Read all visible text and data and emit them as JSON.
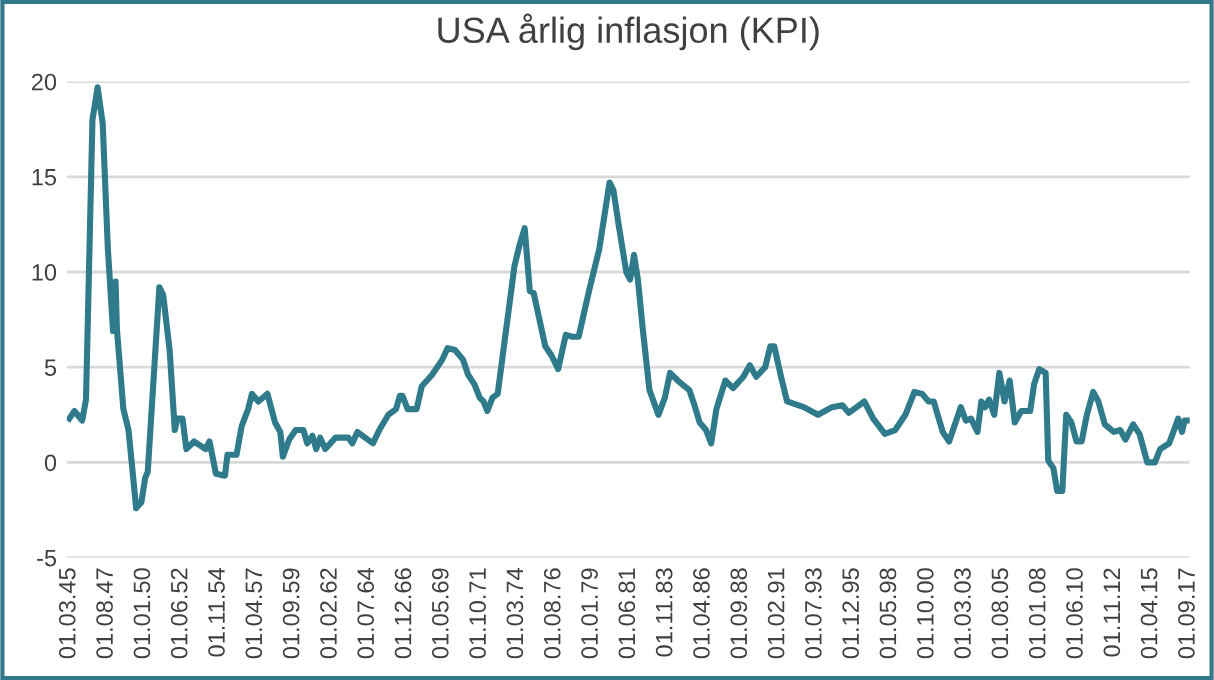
{
  "chart_data": {
    "type": "line",
    "title": "USA årlig inflasjon (KPI)",
    "x": [
      "1945-03",
      "1945-07",
      "1946-01",
      "1946-04",
      "1946-09",
      "1947-01",
      "1947-05",
      "1947-09",
      "1948-01",
      "1948-03",
      "1948-04",
      "1948-09",
      "1949-01",
      "1949-07",
      "1949-11",
      "1950-02",
      "1950-04",
      "1951-01",
      "1951-04",
      "1951-09",
      "1952-01",
      "1952-03",
      "1952-07",
      "1952-10",
      "1953-04",
      "1954-01",
      "1954-04",
      "1954-09",
      "1955-04",
      "1955-06",
      "1956-01",
      "1956-05",
      "1956-10",
      "1957-01",
      "1957-06",
      "1958-01",
      "1958-07",
      "1958-11",
      "1959-01",
      "1959-06",
      "1959-11",
      "1960-05",
      "1960-08",
      "1960-12",
      "1961-03",
      "1961-06",
      "1961-10",
      "1962-06",
      "1963-04",
      "1963-07",
      "1963-11",
      "1964-05",
      "1964-11",
      "1965-04",
      "1965-11",
      "1966-05",
      "1966-08",
      "1966-10",
      "1967-02",
      "1967-09",
      "1968-01",
      "1968-09",
      "1969-05",
      "1969-09",
      "1970-03",
      "1970-09",
      "1971-01",
      "1971-06",
      "1971-10",
      "1972-01",
      "1972-04",
      "1972-08",
      "1972-12",
      "1974-01",
      "1974-05",
      "1974-09",
      "1975-01",
      "1975-04",
      "1976-01",
      "1976-06",
      "1976-11",
      "1977-05",
      "1977-10",
      "1978-03",
      "1978-11",
      "1979-07",
      "1980-03",
      "1980-06",
      "1980-10",
      "1981-04",
      "1981-07",
      "1981-10",
      "1982-01",
      "1982-05",
      "1982-10",
      "1983-05",
      "1983-10",
      "1984-02",
      "1984-08",
      "1985-05",
      "1985-09",
      "1986-01",
      "1986-06",
      "1986-10",
      "1987-02",
      "1987-09",
      "1988-03",
      "1988-11",
      "1989-04",
      "1989-09",
      "1990-04",
      "1990-08",
      "1990-11",
      "1991-04",
      "1991-09",
      "1992-10",
      "1993-09",
      "1994-08",
      "1995-04",
      "1995-09",
      "1996-09",
      "1997-04",
      "1998-01",
      "1998-09",
      "1999-05",
      "1999-12",
      "2000-06",
      "2000-11",
      "2001-03",
      "2001-10",
      "2002-03",
      "2002-12",
      "2003-04",
      "2003-08",
      "2004-01",
      "2004-04",
      "2004-07",
      "2004-10",
      "2005-02",
      "2005-06",
      "2005-10",
      "2006-02",
      "2006-06",
      "2006-11",
      "2007-06",
      "2007-09",
      "2008-01",
      "2008-06",
      "2008-08",
      "2008-12",
      "2009-03",
      "2009-07",
      "2009-10",
      "2010-02",
      "2010-06",
      "2010-10",
      "2011-02",
      "2011-07",
      "2011-11",
      "2012-04",
      "2012-11",
      "2013-04",
      "2013-08",
      "2014-02",
      "2014-07",
      "2015-01",
      "2015-07",
      "2015-11",
      "2016-06",
      "2017-01",
      "2017-04",
      "2017-06",
      "2017-09"
    ],
    "series": [
      {
        "color": "#307b8b",
        "values": [
          2.3,
          2.7,
          2.2,
          3.3,
          18.0,
          19.7,
          17.8,
          11.2,
          6.9,
          9.5,
          7.0,
          2.8,
          1.7,
          -2.4,
          -2.1,
          -0.8,
          -0.5,
          9.2,
          8.8,
          5.9,
          1.7,
          2.3,
          2.3,
          0.7,
          1.1,
          0.7,
          1.1,
          -0.6,
          -0.7,
          0.4,
          0.4,
          1.9,
          2.8,
          3.6,
          3.2,
          3.6,
          2.1,
          1.6,
          0.3,
          1.2,
          1.7,
          1.7,
          1.0,
          1.4,
          0.7,
          1.3,
          0.7,
          1.3,
          1.3,
          1.0,
          1.6,
          1.3,
          1.0,
          1.7,
          2.5,
          2.8,
          3.5,
          3.5,
          2.8,
          2.8,
          4.0,
          4.6,
          5.4,
          6.0,
          5.9,
          5.4,
          4.6,
          4.1,
          3.4,
          3.2,
          2.7,
          3.4,
          3.6,
          10.3,
          11.4,
          12.3,
          9.0,
          8.9,
          6.1,
          5.6,
          4.9,
          6.7,
          6.6,
          6.6,
          9.0,
          11.2,
          14.7,
          14.3,
          12.5,
          10.0,
          9.6,
          10.9,
          9.6,
          6.9,
          3.8,
          2.5,
          3.4,
          4.7,
          4.3,
          3.8,
          3.0,
          2.1,
          1.7,
          1.0,
          2.8,
          4.3,
          3.9,
          4.5,
          5.1,
          4.5,
          5.0,
          6.1,
          6.1,
          4.6,
          3.2,
          2.9,
          2.5,
          2.9,
          3.0,
          2.6,
          3.2,
          2.3,
          1.5,
          1.7,
          2.5,
          3.7,
          3.6,
          3.2,
          3.2,
          1.6,
          1.1,
          2.9,
          2.2,
          2.3,
          1.6,
          3.2,
          2.9,
          3.3,
          2.5,
          4.7,
          3.2,
          4.3,
          2.1,
          2.7,
          2.7,
          4.1,
          4.9,
          4.7,
          0.1,
          -0.3,
          -1.5,
          -1.5,
          2.5,
          2.1,
          1.1,
          1.1,
          2.5,
          3.7,
          3.2,
          2.0,
          1.6,
          1.7,
          1.2,
          2.0,
          1.5,
          0.0,
          0.0,
          0.7,
          1.0,
          2.3,
          1.6,
          2.2,
          2.2
        ]
      }
    ],
    "xlim": [
      "1945-01",
      "2017-10"
    ],
    "xticks": [
      {
        "value": "1945-03-01",
        "label": "01.03.45"
      },
      {
        "value": "1947-08-01",
        "label": "01.08.47"
      },
      {
        "value": "1950-01-01",
        "label": "01.01.50"
      },
      {
        "value": "1952-06-01",
        "label": "01.06.52"
      },
      {
        "value": "1954-11-01",
        "label": "01.11.54"
      },
      {
        "value": "1957-04-01",
        "label": "01.04.57"
      },
      {
        "value": "1959-09-01",
        "label": "01.09.59"
      },
      {
        "value": "1962-02-01",
        "label": "01.02.62"
      },
      {
        "value": "1964-07-01",
        "label": "01.07.64"
      },
      {
        "value": "1966-12-01",
        "label": "01.12.66"
      },
      {
        "value": "1969-05-01",
        "label": "01.05.69"
      },
      {
        "value": "1971-10-01",
        "label": "01.10.71"
      },
      {
        "value": "1974-03-01",
        "label": "01.03.74"
      },
      {
        "value": "1976-08-01",
        "label": "01.08.76"
      },
      {
        "value": "1979-01-01",
        "label": "01.01.79"
      },
      {
        "value": "1981-06-01",
        "label": "01.06.81"
      },
      {
        "value": "1983-11-01",
        "label": "01.11.83"
      },
      {
        "value": "1986-04-01",
        "label": "01.04.86"
      },
      {
        "value": "1988-09-01",
        "label": "01.09.88"
      },
      {
        "value": "1991-02-01",
        "label": "01.02.91"
      },
      {
        "value": "1993-07-01",
        "label": "01.07.93"
      },
      {
        "value": "1995-12-01",
        "label": "01.12.95"
      },
      {
        "value": "1998-05-01",
        "label": "01.05.98"
      },
      {
        "value": "2000-10-01",
        "label": "01.10.00"
      },
      {
        "value": "2003-03-01",
        "label": "01.03.03"
      },
      {
        "value": "2005-08-01",
        "label": "01.08.05"
      },
      {
        "value": "2008-01-01",
        "label": "01.01.08"
      },
      {
        "value": "2010-06-01",
        "label": "01.06.10"
      },
      {
        "value": "2012-11-01",
        "label": "01.11.12"
      },
      {
        "value": "2015-04-01",
        "label": "01.04.15"
      },
      {
        "value": "2017-09-01",
        "label": "01.09.17"
      }
    ],
    "ylim": [
      -5,
      20
    ],
    "yticks": [
      -5,
      0,
      5,
      10,
      15,
      20
    ],
    "grid": "y",
    "legend": false,
    "marker": "none",
    "line_style": "solid"
  }
}
